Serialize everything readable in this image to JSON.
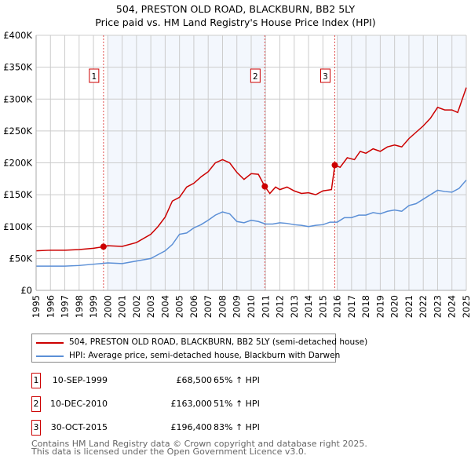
{
  "chart_data": {
    "type": "line",
    "title": "504, PRESTON OLD ROAD, BLACKBURN, BB2 5LY",
    "subtitle": "Price paid vs. HM Land Registry's House Price Index (HPI)",
    "xlim": [
      1995,
      2025
    ],
    "ylim": [
      0,
      400000
    ],
    "yticks": [
      {
        "v": 0,
        "label": "£0"
      },
      {
        "v": 50000,
        "label": "£50K"
      },
      {
        "v": 100000,
        "label": "£100K"
      },
      {
        "v": 150000,
        "label": "£150K"
      },
      {
        "v": 200000,
        "label": "£200K"
      },
      {
        "v": 250000,
        "label": "£250K"
      },
      {
        "v": 300000,
        "label": "£300K"
      },
      {
        "v": 350000,
        "label": "£350K"
      },
      {
        "v": 400000,
        "label": "£400K"
      }
    ],
    "xticks": [
      "1995",
      "1996",
      "1997",
      "1998",
      "1999",
      "2000",
      "2001",
      "2002",
      "2003",
      "2004",
      "2005",
      "2006",
      "2007",
      "2008",
      "2009",
      "2010",
      "2011",
      "2012",
      "2013",
      "2014",
      "2015",
      "2016",
      "2017",
      "2018",
      "2019",
      "2020",
      "2021",
      "2022",
      "2023",
      "2024",
      "2025"
    ],
    "grid": true,
    "shaded_ranges": [
      [
        1999.95,
        2011
      ],
      [
        2016,
        2025
      ]
    ],
    "series": [
      {
        "name": "504, PRESTON OLD ROAD, BLACKBURN, BB2 5LY (semi-detached house)",
        "color": "#cc0000",
        "points": [
          [
            1995,
            62
          ],
          [
            1996,
            63
          ],
          [
            1997,
            63
          ],
          [
            1998,
            64
          ],
          [
            1999,
            66
          ],
          [
            1999.7,
            68.5
          ],
          [
            2000,
            70
          ],
          [
            2001,
            69
          ],
          [
            2002,
            75
          ],
          [
            2003,
            88
          ],
          [
            2003.5,
            100
          ],
          [
            2004,
            115
          ],
          [
            2004.5,
            140
          ],
          [
            2005,
            146
          ],
          [
            2005.5,
            162
          ],
          [
            2006,
            168
          ],
          [
            2006.5,
            178
          ],
          [
            2007,
            186
          ],
          [
            2007.5,
            200
          ],
          [
            2008,
            205
          ],
          [
            2008.5,
            200
          ],
          [
            2009,
            185
          ],
          [
            2009.5,
            174
          ],
          [
            2010,
            183
          ],
          [
            2010.5,
            182
          ],
          [
            2010.95,
            163
          ],
          [
            2011.3,
            152
          ],
          [
            2011.7,
            162
          ],
          [
            2012,
            158
          ],
          [
            2012.5,
            162
          ],
          [
            2013,
            156
          ],
          [
            2013.5,
            152
          ],
          [
            2014,
            153
          ],
          [
            2014.5,
            150
          ],
          [
            2015,
            156
          ],
          [
            2015.6,
            158
          ],
          [
            2015.83,
            196.4
          ],
          [
            2016.2,
            193
          ],
          [
            2016.7,
            208
          ],
          [
            2017.2,
            205
          ],
          [
            2017.6,
            218
          ],
          [
            2018,
            215
          ],
          [
            2018.5,
            222
          ],
          [
            2019,
            218
          ],
          [
            2019.5,
            225
          ],
          [
            2020,
            228
          ],
          [
            2020.5,
            225
          ],
          [
            2021,
            238
          ],
          [
            2021.5,
            248
          ],
          [
            2022,
            258
          ],
          [
            2022.5,
            270
          ],
          [
            2023,
            287
          ],
          [
            2023.5,
            283
          ],
          [
            2024,
            283
          ],
          [
            2024.4,
            279
          ],
          [
            2024.8,
            305
          ],
          [
            2025,
            318
          ]
        ]
      },
      {
        "name": "HPI: Average price, semi-detached house, Blackburn with Darwen",
        "color": "#5b8fd6",
        "points": [
          [
            1995,
            38
          ],
          [
            1996,
            38
          ],
          [
            1997,
            38
          ],
          [
            1998,
            39
          ],
          [
            1999,
            41
          ],
          [
            2000,
            43
          ],
          [
            2001,
            42
          ],
          [
            2002,
            46
          ],
          [
            2003,
            50
          ],
          [
            2003.5,
            56
          ],
          [
            2004,
            62
          ],
          [
            2004.5,
            72
          ],
          [
            2005,
            88
          ],
          [
            2005.5,
            90
          ],
          [
            2006,
            98
          ],
          [
            2006.5,
            103
          ],
          [
            2007,
            110
          ],
          [
            2007.5,
            118
          ],
          [
            2008,
            123
          ],
          [
            2008.5,
            120
          ],
          [
            2009,
            108
          ],
          [
            2009.5,
            106
          ],
          [
            2010,
            110
          ],
          [
            2010.5,
            108
          ],
          [
            2011,
            104
          ],
          [
            2011.5,
            104
          ],
          [
            2012,
            106
          ],
          [
            2012.5,
            105
          ],
          [
            2013,
            103
          ],
          [
            2013.5,
            102
          ],
          [
            2014,
            100
          ],
          [
            2014.5,
            102
          ],
          [
            2015,
            103
          ],
          [
            2015.5,
            107
          ],
          [
            2016,
            107
          ],
          [
            2016.5,
            114
          ],
          [
            2017,
            114
          ],
          [
            2017.5,
            118
          ],
          [
            2018,
            118
          ],
          [
            2018.5,
            122
          ],
          [
            2019,
            120
          ],
          [
            2019.5,
            124
          ],
          [
            2020,
            126
          ],
          [
            2020.5,
            124
          ],
          [
            2021,
            133
          ],
          [
            2021.5,
            136
          ],
          [
            2022,
            143
          ],
          [
            2022.5,
            150
          ],
          [
            2023,
            157
          ],
          [
            2023.5,
            155
          ],
          [
            2024,
            154
          ],
          [
            2024.5,
            160
          ],
          [
            2025,
            173
          ]
        ]
      }
    ],
    "unit_note": "values in £ thousands",
    "markers": [
      {
        "label": "1",
        "x": 1999.7,
        "y": 68.5
      },
      {
        "label": "2",
        "x": 2010.95,
        "y": 163
      },
      {
        "label": "3",
        "x": 2015.83,
        "y": 196.4
      }
    ]
  },
  "transactions": [
    {
      "num": "1",
      "date": "10-SEP-1999",
      "price": "£68,500",
      "hpi": "65% ↑ HPI"
    },
    {
      "num": "2",
      "date": "10-DEC-2010",
      "price": "£163,000",
      "hpi": "51% ↑ HPI"
    },
    {
      "num": "3",
      "date": "30-OCT-2015",
      "price": "£196,400",
      "hpi": "83% ↑ HPI"
    }
  ],
  "footer": {
    "line1": "Contains HM Land Registry data © Crown copyright and database right 2025.",
    "line2": "This data is licensed under the Open Government Licence v3.0."
  }
}
